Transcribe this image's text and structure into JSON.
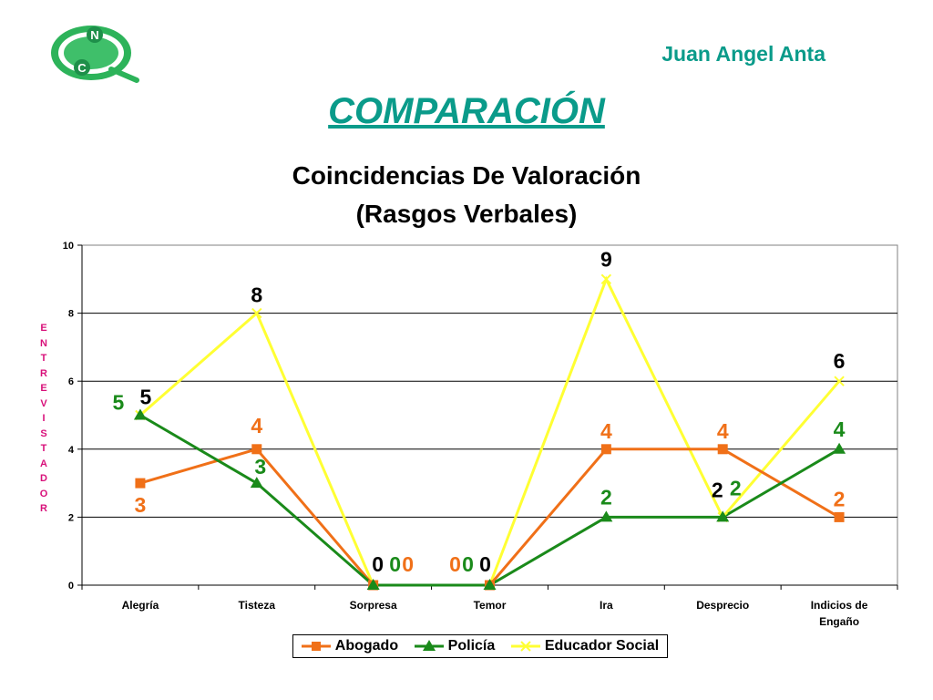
{
  "header": {
    "author": "Juan Angel Anta",
    "heading": "COMPARACIÓN",
    "logo": {
      "letter_top": "N",
      "letter_bottom": "C"
    }
  },
  "chart_data": {
    "type": "line",
    "title_line1": "Coincidencias De Valoración",
    "title_line2": "(Rasgos Verbales)",
    "ylabel": "ENTREVISTADOR",
    "xlabel": "",
    "ylim": [
      0,
      10
    ],
    "yticks": [
      0,
      2,
      4,
      6,
      8,
      10
    ],
    "grid": true,
    "legend": "bottom",
    "categories": [
      "Alegría",
      "Tisteza",
      "Sorpresa",
      "Temor",
      "Ira",
      "Desprecio",
      "Indicios de Engaño"
    ],
    "series": [
      {
        "name": "Abogado",
        "values": [
          3,
          4,
          0,
          0,
          4,
          4,
          2
        ],
        "color": "#f07018",
        "marker": "square"
      },
      {
        "name": "Policía",
        "values": [
          5,
          3,
          0,
          0,
          2,
          2,
          4
        ],
        "color": "#1a8a1a",
        "marker": "triangle"
      },
      {
        "name": "Educador Social",
        "values": [
          5,
          8,
          0,
          0,
          9,
          2,
          6
        ],
        "color": "#ffff33",
        "marker": "x"
      }
    ]
  }
}
